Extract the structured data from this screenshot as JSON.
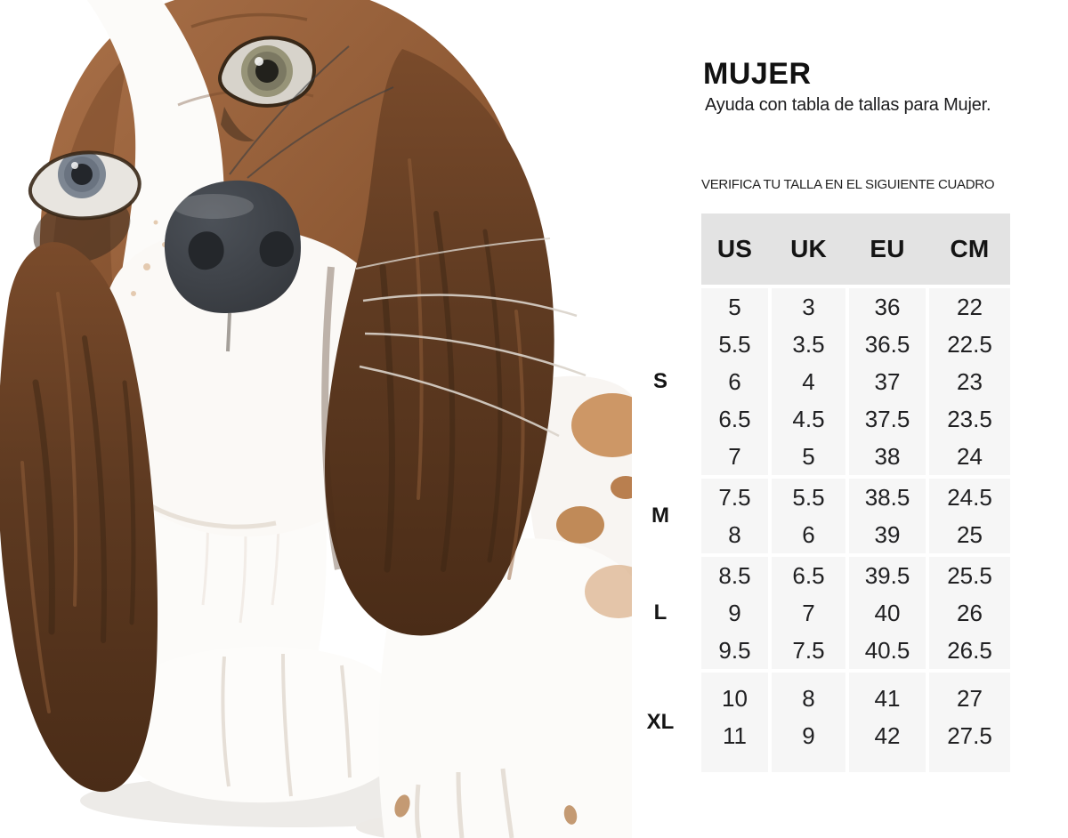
{
  "page": {
    "title": "MUJER",
    "subtitle": "Ayuda con tabla de tallas para Mujer.",
    "note": "VERIFICA TU TALLA EN EL SIGUIENTE CUADRO"
  },
  "hero": {
    "alt": "Foto de un cachorro basset hound sobre fondo blanco"
  },
  "size_table": {
    "columns": [
      "US",
      "UK",
      "EU",
      "CM"
    ],
    "groups": [
      {
        "label": "S",
        "rows": [
          [
            "5",
            "3",
            "36",
            "22"
          ],
          [
            "5.5",
            "3.5",
            "36.5",
            "22.5"
          ],
          [
            "6",
            "4",
            "37",
            "23"
          ],
          [
            "6.5",
            "4.5",
            "37.5",
            "23.5"
          ],
          [
            "7",
            "5",
            "38",
            "24"
          ]
        ]
      },
      {
        "label": "M",
        "rows": [
          [
            "7.5",
            "5.5",
            "38.5",
            "24.5"
          ],
          [
            "8",
            "6",
            "39",
            "25"
          ]
        ]
      },
      {
        "label": "L",
        "rows": [
          [
            "8.5",
            "6.5",
            "39.5",
            "25.5"
          ],
          [
            "9",
            "7",
            "40",
            "26"
          ],
          [
            "9.5",
            "7.5",
            "40.5",
            "26.5"
          ]
        ]
      },
      {
        "label": "XL",
        "rows": [
          [
            "10",
            "8",
            "41",
            "27"
          ],
          [
            "11",
            "9",
            "42",
            "27.5"
          ]
        ]
      }
    ]
  },
  "colors": {
    "header_bg": "#e3e3e3",
    "cell_bg": "#f6f6f6",
    "text": "#1c1c1e",
    "fur_brown": "#8f5a35",
    "fur_dark": "#5e3a21",
    "nose": "#393d42"
  }
}
